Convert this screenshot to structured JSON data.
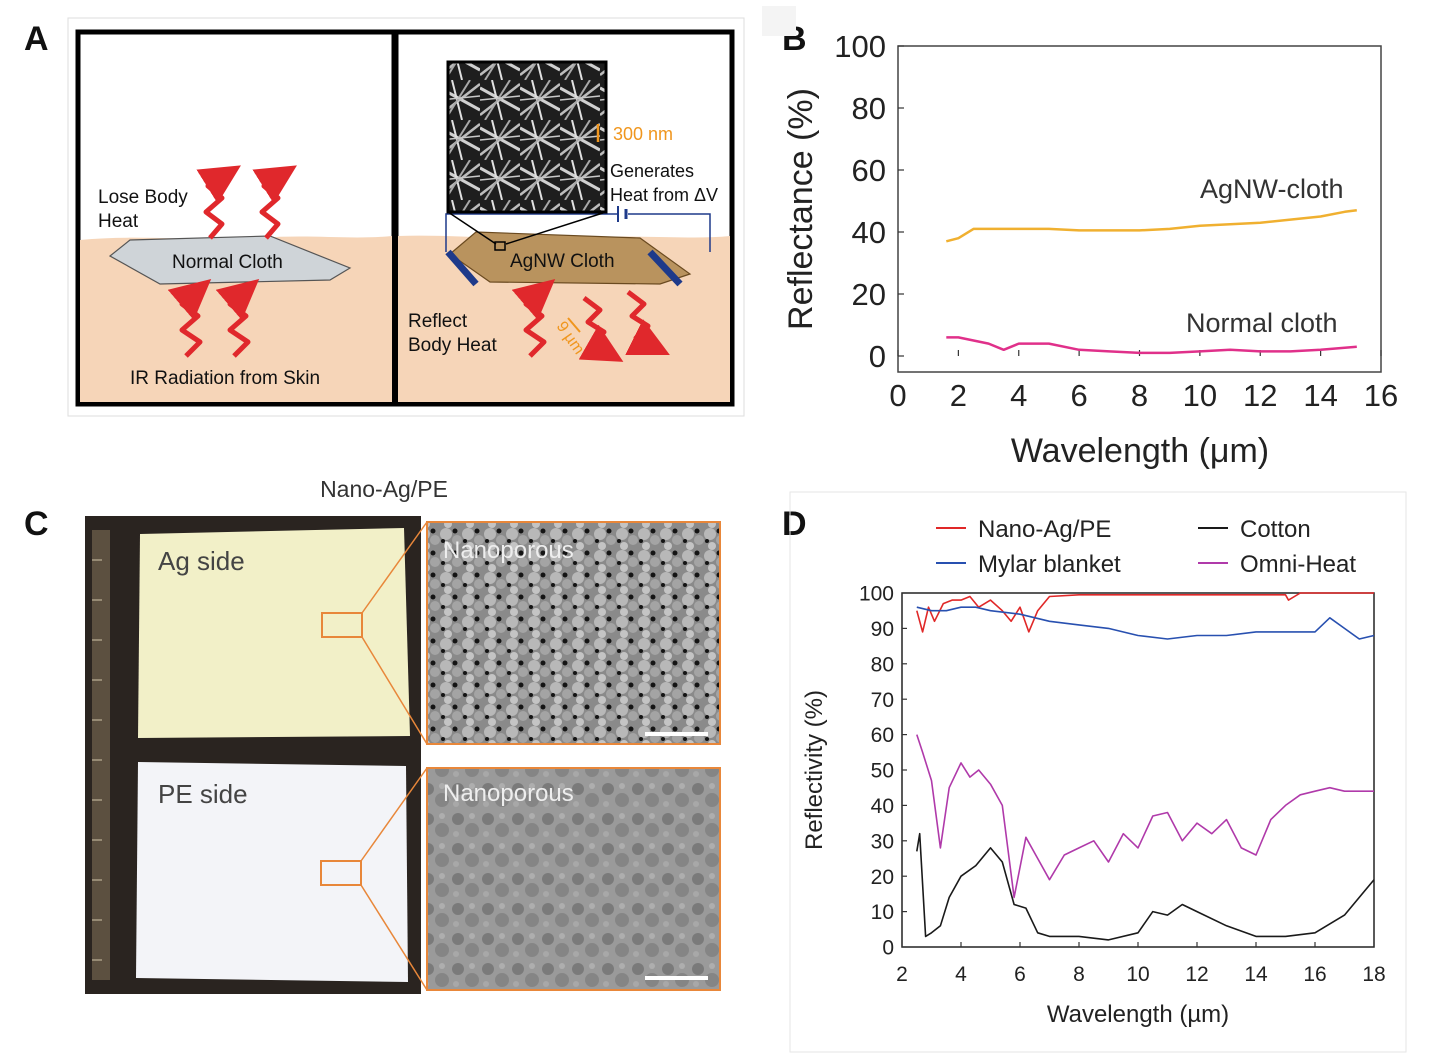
{
  "panels": {
    "a": "A",
    "b": "B",
    "c": "C",
    "d": "D"
  },
  "panel_a": {
    "lose_heat": [
      "Lose Body",
      "Heat"
    ],
    "normal_cloth": "Normal Cloth",
    "ir_radiation": "IR Radiation from Skin",
    "scale_bar": "300 nm",
    "generates": [
      "Generates",
      "Heat from ΔV"
    ],
    "agnw_cloth": "AgNW Cloth",
    "reflect": [
      "Reflect",
      "Body Heat"
    ],
    "wavelength_mark": "9 µm",
    "colors": {
      "skin": "#f6d5b8",
      "arrow": "#e0282c",
      "cloth_gray": "#cfd4d8",
      "cloth_brown": "#b9935e",
      "accent": "#f0961e"
    }
  },
  "panel_c": {
    "title": "Nano-Ag/PE",
    "ag_side": "Ag side",
    "pe_side": "PE side",
    "sem_top": "Nanoporous",
    "sem_bottom": "Nanoporous",
    "colors": {
      "zoom_box": "#e8873a",
      "ag_fabric": "#f2f0c8",
      "pe_fabric": "#f3f4f8"
    }
  },
  "chart_data": [
    {
      "type": "line",
      "xlabel": "Wavelength (μm)",
      "ylabel": "Reflectance (%)",
      "xlim": [
        0,
        16
      ],
      "ylim": [
        0,
        100
      ],
      "xticks": [
        0,
        2,
        4,
        6,
        8,
        10,
        12,
        14,
        16
      ],
      "yticks": [
        0,
        20,
        40,
        60,
        80,
        100
      ],
      "grid": false,
      "series": [
        {
          "name": "AgNW-cloth",
          "color": "#f0b030",
          "x": [
            1.6,
            2.0,
            2.5,
            3.0,
            3.5,
            4.0,
            5.0,
            6.0,
            7.0,
            8.0,
            9.0,
            10.0,
            11.0,
            12.0,
            13.0,
            14.0,
            14.8,
            15.2
          ],
          "y": [
            37,
            38,
            41,
            41,
            41,
            41,
            41,
            40.5,
            40.5,
            40.5,
            41,
            42,
            42.5,
            43,
            44,
            45,
            46.5,
            47
          ]
        },
        {
          "name": "Normal cloth",
          "color": "#e0308a",
          "x": [
            1.6,
            2.0,
            2.5,
            3.0,
            3.5,
            4.0,
            5.0,
            6.0,
            7.0,
            8.0,
            9.0,
            10.0,
            11.0,
            12.0,
            13.0,
            14.0,
            15.2
          ],
          "y": [
            6,
            6,
            5,
            4,
            2,
            4,
            4,
            2,
            1.5,
            1,
            1,
            1.5,
            2,
            1.5,
            1.5,
            2,
            3
          ]
        }
      ]
    },
    {
      "type": "line",
      "xlabel": "Wavelength (µm)",
      "ylabel": "Reflectivity (%)",
      "xlim": [
        2,
        18
      ],
      "ylim": [
        0,
        100
      ],
      "xticks": [
        2,
        4,
        6,
        8,
        10,
        12,
        14,
        16,
        18
      ],
      "yticks": [
        0,
        10,
        20,
        30,
        40,
        50,
        60,
        70,
        80,
        90,
        100
      ],
      "grid": false,
      "legend": "top",
      "series": [
        {
          "name": "Nano-Ag/PE",
          "color": "#e02828",
          "x": [
            2.5,
            2.7,
            2.9,
            3.1,
            3.4,
            3.7,
            4.0,
            4.3,
            4.6,
            5.0,
            5.4,
            5.7,
            6.0,
            6.3,
            6.6,
            7.0,
            8,
            10,
            12,
            14,
            15,
            15.1,
            15.5,
            16,
            17,
            18
          ],
          "y": [
            95,
            89,
            96,
            92,
            97,
            98,
            98,
            99,
            96,
            98,
            95,
            92,
            96,
            89,
            95,
            99,
            99.5,
            99.5,
            99.5,
            99.5,
            99.5,
            98,
            100,
            100,
            100,
            100
          ]
        },
        {
          "name": "Mylar blanket",
          "color": "#2850b0",
          "x": [
            2.5,
            3.0,
            3.5,
            4.0,
            4.5,
            5.0,
            6.0,
            7.0,
            8.0,
            9.0,
            10.0,
            11.0,
            12.0,
            13.0,
            14.0,
            15.0,
            16.0,
            16.5,
            17.0,
            17.5,
            18.0
          ],
          "y": [
            96,
            95,
            95,
            96,
            96,
            95,
            94,
            92,
            91,
            90,
            88,
            87,
            88,
            88,
            89,
            89,
            89,
            93,
            90,
            87,
            88
          ]
        },
        {
          "name": "Cotton",
          "color": "#1a1a1a",
          "x": [
            2.5,
            2.6,
            2.8,
            3.0,
            3.3,
            3.6,
            4.0,
            4.5,
            5.0,
            5.4,
            5.8,
            6.2,
            6.6,
            7.0,
            8.0,
            9.0,
            10.0,
            10.5,
            11.0,
            11.5,
            12.0,
            13.0,
            14.0,
            15.0,
            16.0,
            17.0,
            18.0
          ],
          "y": [
            27,
            32,
            3,
            4,
            6,
            14,
            20,
            23,
            28,
            24,
            12,
            11,
            4,
            3,
            3,
            2,
            4,
            10,
            9,
            12,
            10,
            6,
            3,
            3,
            4,
            9,
            19
          ]
        },
        {
          "name": "Omni-Heat",
          "color": "#b03aaa",
          "x": [
            2.5,
            2.7,
            3.0,
            3.3,
            3.6,
            4.0,
            4.3,
            4.6,
            5.0,
            5.4,
            5.8,
            6.2,
            6.6,
            7.0,
            7.5,
            8.0,
            8.5,
            9.0,
            9.5,
            10.0,
            10.5,
            11.0,
            11.5,
            12.0,
            12.5,
            13.0,
            13.5,
            14.0,
            14.5,
            15.0,
            15.5,
            16.0,
            16.5,
            17.0,
            18.0
          ],
          "y": [
            60,
            55,
            47,
            28,
            45,
            52,
            48,
            50,
            46,
            40,
            14,
            31,
            25,
            19,
            26,
            28,
            30,
            24,
            32,
            28,
            37,
            38,
            30,
            35,
            32,
            36,
            28,
            26,
            36,
            40,
            43,
            44,
            45,
            44,
            44
          ]
        }
      ]
    }
  ]
}
